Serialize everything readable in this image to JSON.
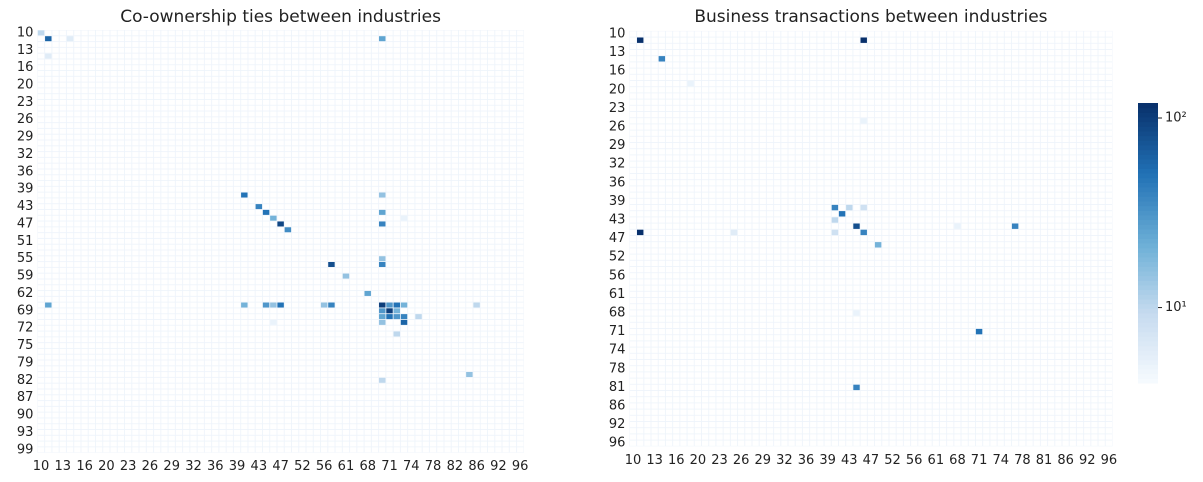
{
  "chart_data": [
    {
      "type": "heatmap",
      "title": "Co-ownership ties between industries",
      "xcategories": [
        "10",
        null,
        null,
        "13",
        null,
        null,
        "16",
        null,
        null,
        "20",
        null,
        null,
        "23",
        null,
        null,
        "26",
        null,
        null,
        "29",
        null,
        null,
        "32",
        null,
        null,
        "36",
        null,
        null,
        "39",
        null,
        null,
        "43",
        null,
        null,
        "47",
        null,
        null,
        "52",
        null,
        null,
        "56",
        null,
        null,
        "61",
        null,
        null,
        "68",
        null,
        null,
        "71",
        null,
        null,
        "74",
        null,
        null,
        "78",
        null,
        null,
        "82",
        null,
        null,
        "86",
        null,
        null,
        "92",
        null,
        null,
        "96"
      ],
      "ycategories": [
        "10",
        null,
        null,
        "13",
        null,
        null,
        "16",
        null,
        null,
        "20",
        null,
        null,
        "23",
        null,
        null,
        "26",
        null,
        null,
        "29",
        null,
        null,
        "32",
        null,
        null,
        "36",
        null,
        null,
        "39",
        null,
        null,
        "43",
        null,
        null,
        "47",
        null,
        null,
        "51",
        null,
        null,
        "55",
        null,
        null,
        "59",
        null,
        null,
        "62",
        null,
        null,
        "69",
        null,
        null,
        "72",
        null,
        null,
        "75",
        null,
        null,
        "79",
        null,
        null,
        "82",
        null,
        null,
        "87",
        null,
        null,
        "90",
        null,
        null,
        "93",
        null,
        null,
        "99"
      ],
      "cells": [
        [
          0,
          0,
          10
        ],
        [
          1,
          1,
          60
        ],
        [
          1,
          4,
          6
        ],
        [
          4,
          1,
          6
        ],
        [
          1,
          47,
          25
        ],
        [
          28,
          28,
          50
        ],
        [
          30,
          30,
          40
        ],
        [
          31,
          31,
          50
        ],
        [
          32,
          32,
          20
        ],
        [
          33,
          33,
          90
        ],
        [
          34,
          34,
          35
        ],
        [
          28,
          47,
          15
        ],
        [
          31,
          47,
          25
        ],
        [
          33,
          47,
          40
        ],
        [
          32,
          50,
          5
        ],
        [
          40,
          40,
          80
        ],
        [
          42,
          42,
          15
        ],
        [
          39,
          47,
          15
        ],
        [
          40,
          47,
          40
        ],
        [
          45,
          45,
          25
        ],
        [
          47,
          1,
          25
        ],
        [
          47,
          28,
          20
        ],
        [
          47,
          31,
          30
        ],
        [
          47,
          32,
          15
        ],
        [
          47,
          33,
          50
        ],
        [
          47,
          39,
          15
        ],
        [
          47,
          40,
          40
        ],
        [
          47,
          47,
          100
        ],
        [
          47,
          48,
          30
        ],
        [
          47,
          49,
          50
        ],
        [
          47,
          50,
          20
        ],
        [
          47,
          60,
          10
        ],
        [
          48,
          47,
          30
        ],
        [
          48,
          48,
          100
        ],
        [
          48,
          49,
          20
        ],
        [
          49,
          47,
          25
        ],
        [
          49,
          48,
          50
        ],
        [
          49,
          49,
          30
        ],
        [
          49,
          50,
          40
        ],
        [
          50,
          47,
          15
        ],
        [
          50,
          50,
          60
        ],
        [
          50,
          32,
          5
        ],
        [
          52,
          49,
          10
        ],
        [
          49,
          52,
          10
        ],
        [
          60,
          47,
          10
        ],
        [
          59,
          59,
          15
        ]
      ],
      "clim": [
        4,
        120
      ],
      "log_color": true,
      "colormap": [
        "#f7fbff",
        "#c6dbef",
        "#6baed6",
        "#2171b5",
        "#08306b"
      ]
    },
    {
      "type": "heatmap",
      "title": "Business transactions between industries",
      "xcategories": [
        "10",
        null,
        null,
        "13",
        null,
        null,
        "16",
        null,
        null,
        "20",
        null,
        null,
        "23",
        null,
        null,
        "26",
        null,
        null,
        "29",
        null,
        null,
        "32",
        null,
        null,
        "36",
        null,
        null,
        "39",
        null,
        null,
        "43",
        null,
        null,
        "47",
        null,
        null,
        "52",
        null,
        null,
        "56",
        null,
        null,
        "61",
        null,
        null,
        "68",
        null,
        null,
        "71",
        null,
        null,
        "74",
        null,
        null,
        "78",
        null,
        null,
        "81",
        null,
        null,
        "86",
        null,
        null,
        "92",
        null,
        null,
        "96"
      ],
      "ycategories": [
        "10",
        null,
        null,
        "13",
        null,
        null,
        "16",
        null,
        null,
        "20",
        null,
        null,
        "23",
        null,
        null,
        "26",
        null,
        null,
        "29",
        null,
        null,
        "32",
        null,
        null,
        "36",
        null,
        null,
        "39",
        null,
        null,
        "43",
        null,
        null,
        "47",
        null,
        null,
        "52",
        null,
        null,
        "56",
        null,
        null,
        "61",
        null,
        null,
        "68",
        null,
        null,
        "71",
        null,
        null,
        "74",
        null,
        null,
        "78",
        null,
        null,
        "81",
        null,
        null,
        "86",
        null,
        null,
        "92",
        null,
        null,
        "96"
      ],
      "cells": [
        [
          1,
          1,
          120
        ],
        [
          1,
          32,
          120
        ],
        [
          4,
          4,
          40
        ],
        [
          8,
          8,
          5
        ],
        [
          14,
          32,
          5
        ],
        [
          28,
          28,
          40
        ],
        [
          29,
          29,
          50
        ],
        [
          28,
          30,
          10
        ],
        [
          28,
          32,
          8
        ],
        [
          30,
          28,
          10
        ],
        [
          31,
          31,
          80
        ],
        [
          32,
          28,
          8
        ],
        [
          32,
          32,
          40
        ],
        [
          32,
          1,
          120
        ],
        [
          32,
          14,
          6
        ],
        [
          31,
          45,
          5
        ],
        [
          31,
          53,
          40
        ],
        [
          34,
          34,
          20
        ],
        [
          45,
          31,
          5
        ],
        [
          48,
          48,
          50
        ],
        [
          57,
          31,
          40
        ]
      ],
      "clim": [
        4,
        120
      ],
      "log_color": true,
      "colormap": [
        "#f7fbff",
        "#c6dbef",
        "#6baed6",
        "#2171b5",
        "#08306b"
      ],
      "colorbar": true,
      "cticks": [
        {
          "value": 10,
          "label": "10¹"
        },
        {
          "value": 100,
          "label": "10²"
        }
      ]
    }
  ]
}
